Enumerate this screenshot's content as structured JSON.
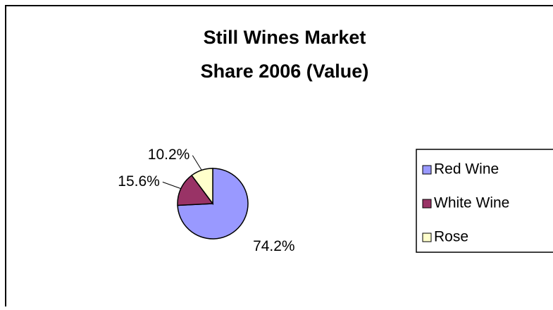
{
  "chart_data": {
    "type": "pie",
    "title": [
      "Still Wines Market",
      "Share 2006 (Value)"
    ],
    "categories": [
      "Red Wine",
      "White Wine",
      "Rose"
    ],
    "values": [
      74.2,
      15.6,
      10.2
    ],
    "value_labels": [
      "74.2%",
      "15.6%",
      "10.2%"
    ],
    "colors": [
      "#9999ff",
      "#993366",
      "#ffffcc"
    ],
    "legend": "right"
  }
}
